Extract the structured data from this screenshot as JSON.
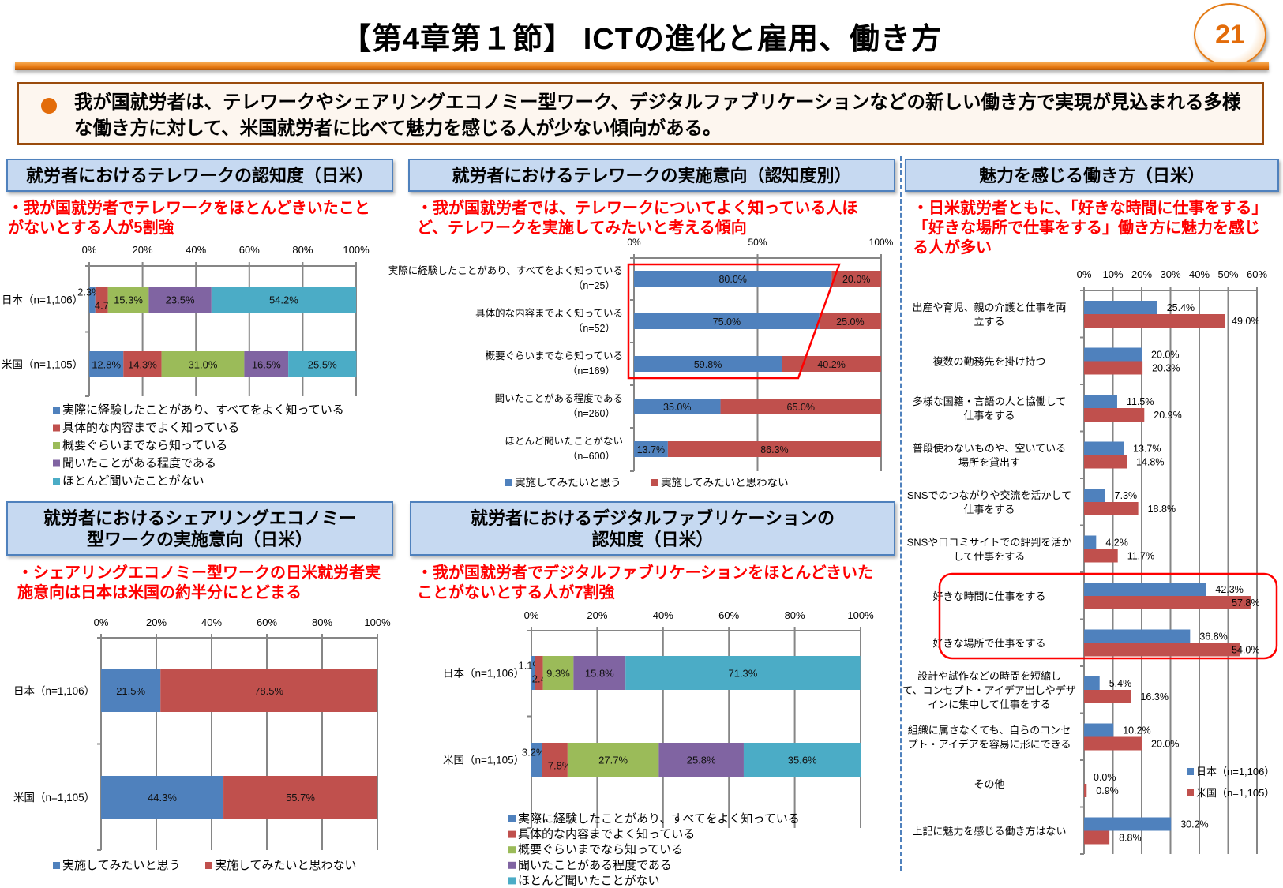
{
  "header": {
    "title": "【第4章第１節】 ICTの進化と雇用、働き方",
    "page_number": "21"
  },
  "summary": {
    "text": "我が国就労者は、テレワークやシェアリングエコノミー型ワーク、デジタルファブリケーションなどの新しい働き方で実現が見込まれる多様な働き方に対して、米国就労者に比べて魅力を感じる人が少ない傾向がある。"
  },
  "panels": {
    "telework_awareness": {
      "title": "就労者におけるテレワークの認知度（日米）",
      "note": "・我が国就労者でテレワークをほとんどきいたことがないとする人が5割強"
    },
    "telework_intent": {
      "title": "就労者におけるテレワークの実施意向（認知度別）",
      "note": "・我が国就労者では、テレワークについてよく知っている人ほど、テレワークを実施してみたいと考える傾向"
    },
    "attractive_workstyles": {
      "title": "魅力を感じる働き方（日米）",
      "note": "・日米就労者ともに、「好きな時間に仕事をする」「好きな場所で仕事をする」働き方に魅力を感じる人が多い"
    },
    "sharing_economy": {
      "title": "就労者におけるシェアリングエコノミー型ワークの実施意向（日米）",
      "note": "・シェアリングエコノミー型ワークの日米就労者実施意向は日本は米国の約半分にとどまる"
    },
    "digital_fab": {
      "title": "就労者におけるデジタルファブリケーションの認知度（日米）",
      "note": "・我が国就労者でデジタルファブリケーションをほとんどきいたことがないとする人が7割強"
    }
  },
  "chart_data": [
    {
      "id": "telework_awareness",
      "type": "bar",
      "orientation": "horizontal",
      "stacked": true,
      "categories": [
        "日本（n=1,106）",
        "米国（n=1,105）"
      ],
      "series": [
        {
          "name": "実際に経験したことがあり、すべてをよく知っている",
          "color": "#4f81bd",
          "values": [
            2.3,
            12.8
          ]
        },
        {
          "name": "具体的な内容までよく知っている",
          "color": "#c0504d",
          "values": [
            4.7,
            14.3
          ]
        },
        {
          "name": "概要ぐらいまでなら知っている",
          "color": "#9bbb59",
          "values": [
            15.3,
            31.0
          ]
        },
        {
          "name": "聞いたことがある程度である",
          "color": "#8064a2",
          "values": [
            23.5,
            16.5
          ]
        },
        {
          "name": "ほとんど聞いたことがない",
          "color": "#4bacc6",
          "values": [
            54.2,
            25.5
          ]
        }
      ],
      "xlim": [
        0,
        100
      ],
      "xticks": [
        0,
        20,
        40,
        60,
        80,
        100
      ],
      "tick_suffix": "%",
      "grid": true,
      "legend": "bottom"
    },
    {
      "id": "telework_intent",
      "type": "bar",
      "orientation": "horizontal",
      "stacked": true,
      "categories": [
        "実際に経験したことがあり、すべてをよく知っている",
        "具体的な内容までよく知っている",
        "概要ぐらいまでなら知っている",
        "聞いたことがある程度である",
        "ほとんど聞いたことがない"
      ],
      "sample_sizes": [
        "（n=25）",
        "（n=52）",
        "（n=169）",
        "（n=260）",
        "（n=600）"
      ],
      "series": [
        {
          "name": "実施してみたいと思う",
          "color": "#4f81bd",
          "values": [
            80.0,
            75.0,
            59.8,
            35.0,
            13.7
          ]
        },
        {
          "name": "実施してみたいと思わない",
          "color": "#c0504d",
          "values": [
            20.0,
            25.0,
            40.2,
            65.0,
            86.3
          ]
        }
      ],
      "xlim": [
        0,
        100
      ],
      "xticks": [
        0,
        50,
        100
      ],
      "tick_suffix": "%",
      "grid": true,
      "legend": "bottom",
      "highlight": "top three categories"
    },
    {
      "id": "attractive_workstyles",
      "type": "bar",
      "orientation": "horizontal",
      "stacked": false,
      "categories": [
        "出産や育児、親の介護と仕事を両\n立する",
        "複数の勤務先を掛け持つ",
        "多様な国籍・言語の人と協働して\n仕事をする",
        "普段使わないものや、空いている\n場所を貸出す",
        "SNSでのつながりや交流を活かして\n仕事をする",
        "SNSや口コミサイトでの評判を活か\nして仕事をする",
        "好きな時間に仕事をする",
        "好きな場所で仕事をする",
        "設計や試作などの時間を短縮し\nて、コンセプト・アイデア出しやデザ\nインに集中して仕事をする",
        "組織に属さなくても、自らのコンセ\nプト・アイデアを容易に形にできる",
        "その他",
        "上記に魅力を感じる働き方はない"
      ],
      "series": [
        {
          "name": "日本（n=1,106）",
          "color": "#4f81bd",
          "values": [
            25.4,
            20.0,
            11.5,
            13.7,
            7.3,
            4.2,
            42.3,
            36.8,
            5.4,
            10.2,
            0.0,
            30.2
          ]
        },
        {
          "name": "米国（n=1,105）",
          "color": "#c0504d",
          "values": [
            49.0,
            20.3,
            20.9,
            14.8,
            18.8,
            11.7,
            57.8,
            54.0,
            16.3,
            20.0,
            0.9,
            8.8
          ]
        }
      ],
      "xlim": [
        0,
        60
      ],
      "xticks": [
        0,
        10,
        20,
        30,
        40,
        50,
        60
      ],
      "tick_suffix": "%",
      "grid": true,
      "legend": "bottom-right",
      "highlight": [
        "好きな時間に仕事をする",
        "好きな場所で仕事をする"
      ]
    },
    {
      "id": "sharing_economy",
      "type": "bar",
      "orientation": "horizontal",
      "stacked": true,
      "categories": [
        "日本（n=1,106）",
        "米国（n=1,105）"
      ],
      "series": [
        {
          "name": "実施してみたいと思う",
          "color": "#4f81bd",
          "values": [
            21.5,
            44.3
          ]
        },
        {
          "name": "実施してみたいと思わない",
          "color": "#c0504d",
          "values": [
            78.5,
            55.7
          ]
        }
      ],
      "xlim": [
        0,
        100
      ],
      "xticks": [
        0,
        20,
        40,
        60,
        80,
        100
      ],
      "tick_suffix": "%",
      "grid": true,
      "legend": "bottom"
    },
    {
      "id": "digital_fab",
      "type": "bar",
      "orientation": "horizontal",
      "stacked": true,
      "categories": [
        "日本（n=1,106）",
        "米国（n=1,105）"
      ],
      "series": [
        {
          "name": "実際に経験したことがあり、すべてをよく知っている",
          "color": "#4f81bd",
          "values": [
            1.1,
            3.2
          ]
        },
        {
          "name": "具体的な内容までよく知っている",
          "color": "#c0504d",
          "values": [
            2.4,
            7.8
          ]
        },
        {
          "name": "概要ぐらいまでなら知っている",
          "color": "#9bbb59",
          "values": [
            9.3,
            27.7
          ]
        },
        {
          "name": "聞いたことがある程度である",
          "color": "#8064a2",
          "values": [
            15.8,
            25.8
          ]
        },
        {
          "name": "ほとんど聞いたことがない",
          "color": "#4bacc6",
          "values": [
            71.3,
            35.6
          ]
        }
      ],
      "xlim": [
        0,
        100
      ],
      "xticks": [
        0,
        20,
        40,
        60,
        80,
        100
      ],
      "tick_suffix": "%",
      "grid": true,
      "legend": "bottom"
    }
  ]
}
